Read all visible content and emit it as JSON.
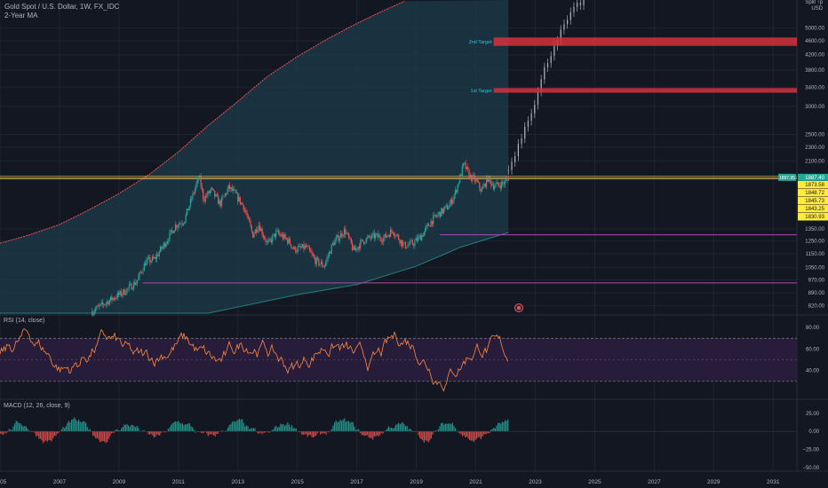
{
  "header": {
    "symbol_title": "Gold Spot / U.S. Dollar, 1W, FX_IDC",
    "indicator_title": "2-Year MA"
  },
  "axis": {
    "scale_label": "Split ↑p",
    "currency": "USD"
  },
  "colors": {
    "background": "#131722",
    "grid": "#1f2330",
    "bull": "#26a69a",
    "bear": "#ef5350",
    "band_fill": "#1d3b4a",
    "ma_line": "#ef5350",
    "rsi_line": "#ff8a3d",
    "rsi_band": "#2a1d3d",
    "support_line": "#ab47bc",
    "target_box": "#d5313b",
    "target_text": "#26c6da",
    "price_label": "#26a69a",
    "yellow_label": "#ffeb3b"
  },
  "chart_data": [
    {
      "type": "candlestick",
      "log_scale": true,
      "x_ticks": [
        "05",
        "2007",
        "2009",
        "2011",
        "2013",
        "2015",
        "2017",
        "2019",
        "2021",
        "2023",
        "2025",
        "2027",
        "2029",
        "2031"
      ],
      "y_ticks": [
        5000,
        4600,
        4200,
        3800,
        3400,
        3000,
        2500,
        2300,
        2100,
        1350,
        1250,
        1150,
        1050,
        970,
        890,
        820
      ],
      "ylim": [
        780,
        6000
      ],
      "xlim": [
        2005.0,
        2031.8
      ],
      "price_axis_labels": {
        "current": "1887.40",
        "current_left": "1897.95",
        "levels": [
          "1873.58",
          "1848.72",
          "1845.73",
          "1843.25",
          "1830.93"
        ]
      },
      "annotations": [
        {
          "label": "2nd Target",
          "price_low": 4450,
          "price_high": 4700,
          "x_start": 2021.6
        },
        {
          "label": "1st Target",
          "price_low": 3280,
          "price_high": 3380,
          "x_start": 2021.6
        }
      ],
      "support_lines": [
        {
          "price": 1300,
          "x_start": 2019.8
        },
        {
          "price": 950,
          "x_start": 2009.8
        }
      ],
      "horizontal_lines": [
        1906,
        1886,
        1870
      ],
      "ma_curve": [
        [
          2005.0,
          1230
        ],
        [
          2006.0,
          1300
        ],
        [
          2007.0,
          1390
        ],
        [
          2008.0,
          1530
        ],
        [
          2009.0,
          1700
        ],
        [
          2010.0,
          1920
        ],
        [
          2011.0,
          2230
        ],
        [
          2012.0,
          2650
        ],
        [
          2013.0,
          3100
        ],
        [
          2014.0,
          3650
        ],
        [
          2015.0,
          4150
        ],
        [
          2016.0,
          4650
        ],
        [
          2017.0,
          5150
        ],
        [
          2017.8,
          5550
        ],
        [
          2018.6,
          5950
        ]
      ],
      "band_lower": [
        [
          2005.0,
          780
        ],
        [
          2012.0,
          780
        ],
        [
          2015.0,
          880
        ],
        [
          2017.0,
          940
        ],
        [
          2019.0,
          1060
        ],
        [
          2020.5,
          1200
        ],
        [
          2022.1,
          1320
        ]
      ],
      "band_upper_end_x": 2022.1,
      "price_path": [
        [
          2008.1,
          790
        ],
        [
          2008.8,
          860
        ],
        [
          2009.2,
          900
        ],
        [
          2009.6,
          960
        ],
        [
          2009.9,
          1090
        ],
        [
          2010.2,
          1110
        ],
        [
          2010.6,
          1250
        ],
        [
          2010.9,
          1380
        ],
        [
          2011.2,
          1430
        ],
        [
          2011.6,
          1800
        ],
        [
          2011.7,
          1890
        ],
        [
          2011.85,
          1640
        ],
        [
          2012.1,
          1740
        ],
        [
          2012.4,
          1590
        ],
        [
          2012.7,
          1770
        ],
        [
          2012.9,
          1700
        ],
        [
          2013.2,
          1560
        ],
        [
          2013.5,
          1300
        ],
        [
          2013.7,
          1390
        ],
        [
          2014.0,
          1220
        ],
        [
          2014.3,
          1320
        ],
        [
          2014.7,
          1250
        ],
        [
          2014.9,
          1180
        ],
        [
          2015.3,
          1200
        ],
        [
          2015.6,
          1100
        ],
        [
          2015.9,
          1060
        ],
        [
          2016.2,
          1230
        ],
        [
          2016.6,
          1340
        ],
        [
          2016.9,
          1170
        ],
        [
          2017.2,
          1250
        ],
        [
          2017.6,
          1290
        ],
        [
          2017.9,
          1270
        ],
        [
          2018.2,
          1340
        ],
        [
          2018.6,
          1210
        ],
        [
          2018.9,
          1230
        ],
        [
          2019.2,
          1300
        ],
        [
          2019.5,
          1420
        ],
        [
          2019.8,
          1500
        ],
        [
          2020.1,
          1570
        ],
        [
          2020.3,
          1700
        ],
        [
          2020.6,
          2060
        ],
        [
          2020.8,
          1900
        ],
        [
          2021.0,
          1850
        ],
        [
          2021.2,
          1730
        ],
        [
          2021.4,
          1880
        ],
        [
          2021.6,
          1790
        ],
        [
          2021.8,
          1800
        ],
        [
          2022.0,
          1830
        ],
        [
          2022.1,
          1890
        ]
      ],
      "projection_path": [
        [
          2022.1,
          1980
        ],
        [
          2022.4,
          2300
        ],
        [
          2022.7,
          2700
        ],
        [
          2023.0,
          3100
        ],
        [
          2023.3,
          3800
        ],
        [
          2023.7,
          4600
        ],
        [
          2024.1,
          5300
        ],
        [
          2024.4,
          5800
        ],
        [
          2024.7,
          6000
        ]
      ]
    },
    {
      "type": "line",
      "title": "RSI (14, close)",
      "ylim": [
        15,
        90
      ],
      "y_ticks": [
        80,
        60,
        40
      ],
      "band": [
        30,
        70
      ]
    },
    {
      "type": "histogram",
      "title": "MACD (12, 26, close, 9)",
      "ylim": [
        -55,
        42
      ],
      "y_ticks": [
        25.0,
        0.0,
        -25.0,
        -50.0
      ],
      "y_tick_labels": [
        "25.00",
        "0.00",
        "−25.00",
        "−50.00"
      ]
    }
  ]
}
